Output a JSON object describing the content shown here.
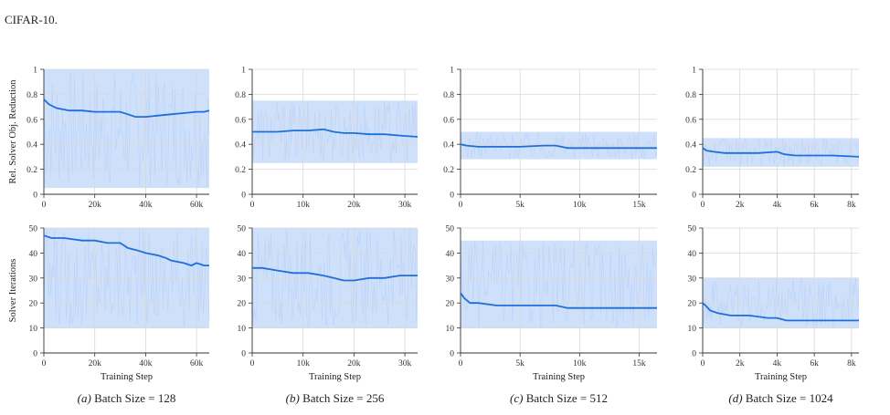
{
  "figure_header": "CIFAR-10.",
  "chart_data": [
    {
      "type": "line",
      "panel": "a",
      "row": "rel_obj",
      "caption_prefix": "(a)",
      "caption_text": "Batch Size = 128",
      "xlabel": "",
      "ylabel": "Rel. Solver Obj. Reduction",
      "xlim": [
        0,
        65000
      ],
      "ylim": [
        0,
        1
      ],
      "xticks": [
        0,
        20000,
        40000,
        60000
      ],
      "xtick_labels": [
        "0",
        "20k",
        "40k",
        "60k"
      ],
      "yticks": [
        0,
        0.2,
        0.4,
        0.6,
        0.8,
        1
      ],
      "ytick_labels": [
        "0",
        "0.2",
        "0.4",
        "0.6",
        "0.8",
        "1"
      ],
      "band": [
        0.05,
        1.0
      ],
      "series": [
        {
          "x": [
            0,
            2000,
            5000,
            10000,
            15000,
            20000,
            25000,
            30000,
            33000,
            36000,
            40000,
            45000,
            50000,
            55000,
            60000,
            63000,
            65000
          ],
          "y": [
            0.76,
            0.72,
            0.69,
            0.67,
            0.67,
            0.66,
            0.66,
            0.66,
            0.64,
            0.62,
            0.62,
            0.63,
            0.64,
            0.65,
            0.66,
            0.66,
            0.67
          ]
        }
      ]
    },
    {
      "type": "line",
      "panel": "b",
      "row": "rel_obj",
      "caption_prefix": "(b)",
      "caption_text": "Batch Size = 256",
      "xlabel": "",
      "ylabel": "",
      "xlim": [
        0,
        32500
      ],
      "ylim": [
        0,
        1
      ],
      "xticks": [
        0,
        10000,
        20000,
        30000
      ],
      "xtick_labels": [
        "0",
        "10k",
        "20k",
        "30k"
      ],
      "yticks": [
        0,
        0.2,
        0.4,
        0.6,
        0.8,
        1
      ],
      "ytick_labels": [
        "0",
        "0.2",
        "0.4",
        "0.6",
        "0.8",
        "1"
      ],
      "band": [
        0.25,
        0.75
      ],
      "series": [
        {
          "x": [
            0,
            2000,
            5000,
            8000,
            11000,
            14000,
            16000,
            18000,
            20000,
            23000,
            26000,
            29000,
            32500
          ],
          "y": [
            0.5,
            0.5,
            0.5,
            0.51,
            0.51,
            0.52,
            0.5,
            0.49,
            0.49,
            0.48,
            0.48,
            0.47,
            0.46
          ]
        }
      ]
    },
    {
      "type": "line",
      "panel": "c",
      "row": "rel_obj",
      "caption_prefix": "(c)",
      "caption_text": "Batch Size = 512",
      "xlabel": "",
      "ylabel": "",
      "xlim": [
        0,
        16500
      ],
      "ylim": [
        0,
        1
      ],
      "xticks": [
        0,
        5000,
        10000,
        15000
      ],
      "xtick_labels": [
        "0",
        "5k",
        "10k",
        "15k"
      ],
      "yticks": [
        0,
        0.2,
        0.4,
        0.6,
        0.8,
        1
      ],
      "ytick_labels": [
        "0",
        "0.2",
        "0.4",
        "0.6",
        "0.8",
        "1"
      ],
      "band": [
        0.28,
        0.5
      ],
      "series": [
        {
          "x": [
            0,
            500,
            1500,
            3000,
            5000,
            7000,
            8000,
            9000,
            11000,
            13000,
            15000,
            16500
          ],
          "y": [
            0.4,
            0.39,
            0.38,
            0.38,
            0.38,
            0.39,
            0.39,
            0.37,
            0.37,
            0.37,
            0.37,
            0.37
          ]
        }
      ]
    },
    {
      "type": "line",
      "panel": "d",
      "row": "rel_obj",
      "caption_prefix": "(d)",
      "caption_text": "Batch Size = 1024",
      "xlabel": "",
      "ylabel": "",
      "xlim": [
        0,
        8400
      ],
      "ylim": [
        0,
        1
      ],
      "xticks": [
        0,
        2000,
        4000,
        6000,
        8000
      ],
      "xtick_labels": [
        "0",
        "2k",
        "4k",
        "6k",
        "8k"
      ],
      "yticks": [
        0,
        0.2,
        0.4,
        0.6,
        0.8,
        1
      ],
      "ytick_labels": [
        "0",
        "0.2",
        "0.4",
        "0.6",
        "0.8",
        "1"
      ],
      "band": [
        0.22,
        0.45
      ],
      "series": [
        {
          "x": [
            0,
            200,
            600,
            1200,
            2000,
            3000,
            4000,
            4400,
            5000,
            6000,
            7000,
            8400
          ],
          "y": [
            0.37,
            0.35,
            0.34,
            0.33,
            0.33,
            0.33,
            0.34,
            0.32,
            0.31,
            0.31,
            0.31,
            0.3
          ]
        }
      ]
    },
    {
      "type": "line",
      "panel": "a",
      "row": "iterations",
      "caption_prefix": "",
      "caption_text": "",
      "xlabel": "Training Step",
      "ylabel": "Solver Iterations",
      "xlim": [
        0,
        65000
      ],
      "ylim": [
        0,
        50
      ],
      "xticks": [
        0,
        20000,
        40000,
        60000
      ],
      "xtick_labels": [
        "0",
        "20k",
        "40k",
        "60k"
      ],
      "yticks": [
        0,
        10,
        20,
        30,
        40,
        50
      ],
      "ytick_labels": [
        "0",
        "10",
        "20",
        "30",
        "40",
        "50"
      ],
      "band": [
        10,
        50
      ],
      "series": [
        {
          "x": [
            0,
            3000,
            8000,
            15000,
            20000,
            25000,
            30000,
            33000,
            37000,
            40000,
            45000,
            48000,
            50000,
            55000,
            58000,
            60000,
            63000,
            65000
          ],
          "y": [
            47,
            46,
            46,
            45,
            45,
            44,
            44,
            42,
            41,
            40,
            39,
            38,
            37,
            36,
            35,
            36,
            35,
            35
          ]
        }
      ]
    },
    {
      "type": "line",
      "panel": "b",
      "row": "iterations",
      "caption_prefix": "",
      "caption_text": "",
      "xlabel": "Training Step",
      "ylabel": "",
      "xlim": [
        0,
        32500
      ],
      "ylim": [
        0,
        50
      ],
      "xticks": [
        0,
        10000,
        20000,
        30000
      ],
      "xtick_labels": [
        "0",
        "10k",
        "20k",
        "30k"
      ],
      "yticks": [
        0,
        10,
        20,
        30,
        40,
        50
      ],
      "ytick_labels": [
        "0",
        "10",
        "20",
        "30",
        "40",
        "50"
      ],
      "band": [
        10,
        50
      ],
      "series": [
        {
          "x": [
            0,
            2000,
            5000,
            8000,
            11000,
            14000,
            16000,
            18000,
            20000,
            23000,
            26000,
            29000,
            32500
          ],
          "y": [
            34,
            34,
            33,
            32,
            32,
            31,
            30,
            29,
            29,
            30,
            30,
            31,
            31
          ]
        }
      ]
    },
    {
      "type": "line",
      "panel": "c",
      "row": "iterations",
      "caption_prefix": "",
      "caption_text": "",
      "xlabel": "Training Step",
      "ylabel": "",
      "xlim": [
        0,
        16500
      ],
      "ylim": [
        0,
        50
      ],
      "xticks": [
        0,
        5000,
        10000,
        15000
      ],
      "xtick_labels": [
        "0",
        "5k",
        "10k",
        "15k"
      ],
      "yticks": [
        0,
        10,
        20,
        30,
        40,
        50
      ],
      "ytick_labels": [
        "0",
        "10",
        "20",
        "30",
        "40",
        "50"
      ],
      "band": [
        10,
        45
      ],
      "series": [
        {
          "x": [
            0,
            300,
            800,
            1500,
            3000,
            5000,
            7000,
            8000,
            9000,
            11000,
            13000,
            15000,
            16500
          ],
          "y": [
            24,
            22,
            20,
            20,
            19,
            19,
            19,
            19,
            18,
            18,
            18,
            18,
            18
          ]
        }
      ]
    },
    {
      "type": "line",
      "panel": "d",
      "row": "iterations",
      "caption_prefix": "",
      "caption_text": "",
      "xlabel": "Training Step",
      "ylabel": "",
      "xlim": [
        0,
        8400
      ],
      "ylim": [
        0,
        50
      ],
      "xticks": [
        0,
        2000,
        4000,
        6000,
        8000
      ],
      "xtick_labels": [
        "0",
        "2k",
        "4k",
        "6k",
        "8k"
      ],
      "yticks": [
        0,
        10,
        20,
        30,
        40,
        50
      ],
      "ytick_labels": [
        "0",
        "10",
        "20",
        "30",
        "40",
        "50"
      ],
      "band": [
        10,
        30
      ],
      "series": [
        {
          "x": [
            0,
            150,
            400,
            800,
            1500,
            2500,
            3500,
            4000,
            4500,
            5500,
            6500,
            7500,
            8400
          ],
          "y": [
            20,
            19,
            17,
            16,
            15,
            15,
            14,
            14,
            13,
            13,
            13,
            13,
            13
          ]
        }
      ]
    }
  ],
  "colors": {
    "line": "#1f6fd8",
    "band": "#cfe0fb",
    "grid": "#d9d9d9",
    "axis": "#333333"
  }
}
